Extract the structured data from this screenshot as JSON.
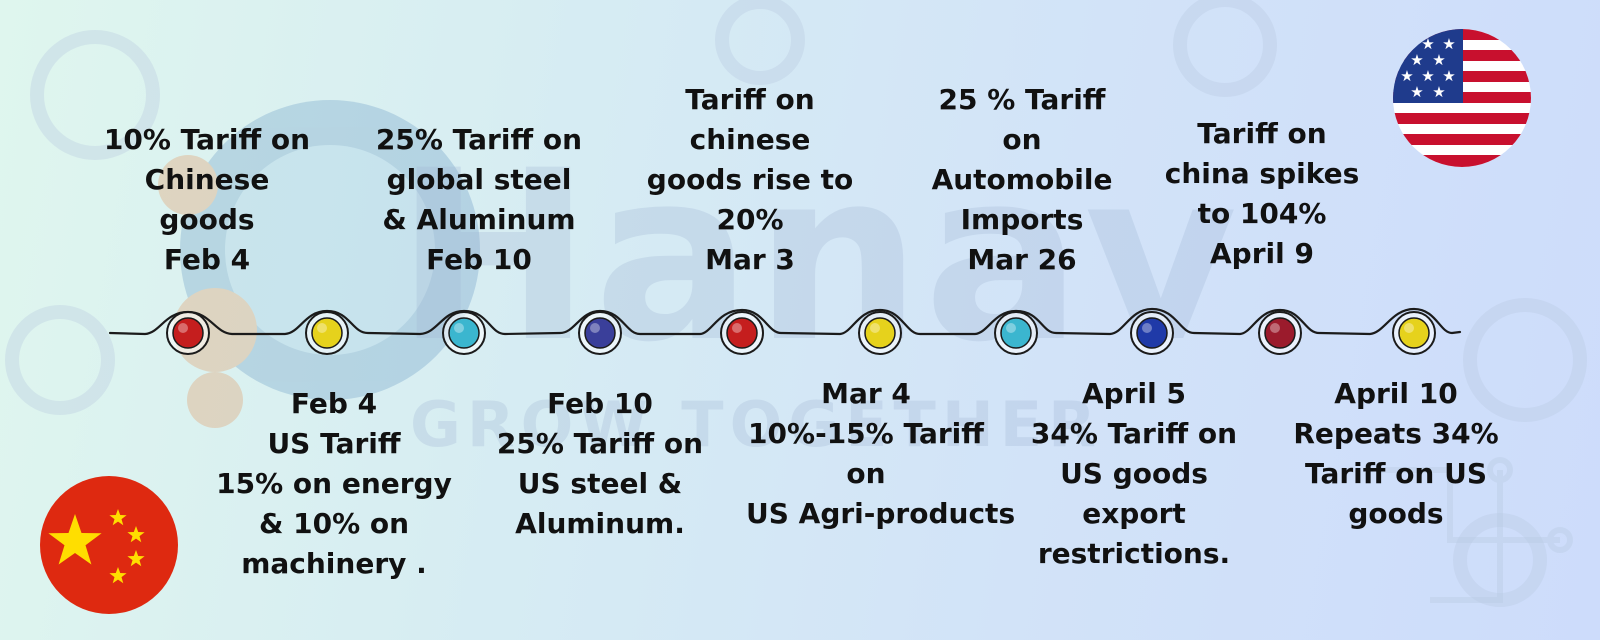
{
  "watermark": {
    "brand": "Hanav",
    "tagline": "GROW TOGETHER"
  },
  "colors": {
    "red": "#c51e1e",
    "yellow": "#e6d21c",
    "cyan": "#3bb6cf",
    "navy": "#3a3f9a",
    "blue": "#1f3aa8",
    "maroon": "#9b1b2c"
  },
  "flags": {
    "top_right": "usa-flag",
    "bottom_left": "china-flag"
  },
  "top_events": [
    {
      "lines": [
        "10% Tariff on",
        "Chinese",
        "goods",
        "Feb 4"
      ]
    },
    {
      "lines": [
        "25% Tariff on",
        "global steel",
        "& Aluminum",
        "Feb 10"
      ]
    },
    {
      "lines": [
        "Tariff on",
        "chinese",
        "goods rise to",
        "20%",
        "Mar 3"
      ]
    },
    {
      "lines": [
        "25 % Tariff",
        "on",
        "Automobile",
        "Imports",
        "Mar 26"
      ]
    },
    {
      "lines": [
        "Tariff on",
        "china spikes",
        "to 104%",
        "April 9"
      ]
    }
  ],
  "bottom_events": [
    {
      "lines": [
        "Feb 4",
        "US Tariff",
        "15% on energy",
        "& 10% on",
        "machinery ."
      ]
    },
    {
      "lines": [
        "Feb 10",
        "25% Tariff on",
        "US steel &",
        "Aluminum."
      ]
    },
    {
      "lines": [
        "Mar 4",
        "10%-15% Tariff",
        "on",
        "US Agri-products"
      ]
    },
    {
      "lines": [
        "April 5",
        "34% Tariff on",
        "US goods",
        "export",
        "restrictions."
      ]
    },
    {
      "lines": [
        "April 10",
        "Repeats 34%",
        "Tariff on US",
        "goods"
      ]
    }
  ],
  "markers": [
    {
      "color": "red"
    },
    {
      "color": "yellow"
    },
    {
      "color": "cyan"
    },
    {
      "color": "navy"
    },
    {
      "color": "red"
    },
    {
      "color": "yellow"
    },
    {
      "color": "cyan"
    },
    {
      "color": "blue"
    },
    {
      "color": "maroon"
    },
    {
      "color": "yellow"
    }
  ]
}
